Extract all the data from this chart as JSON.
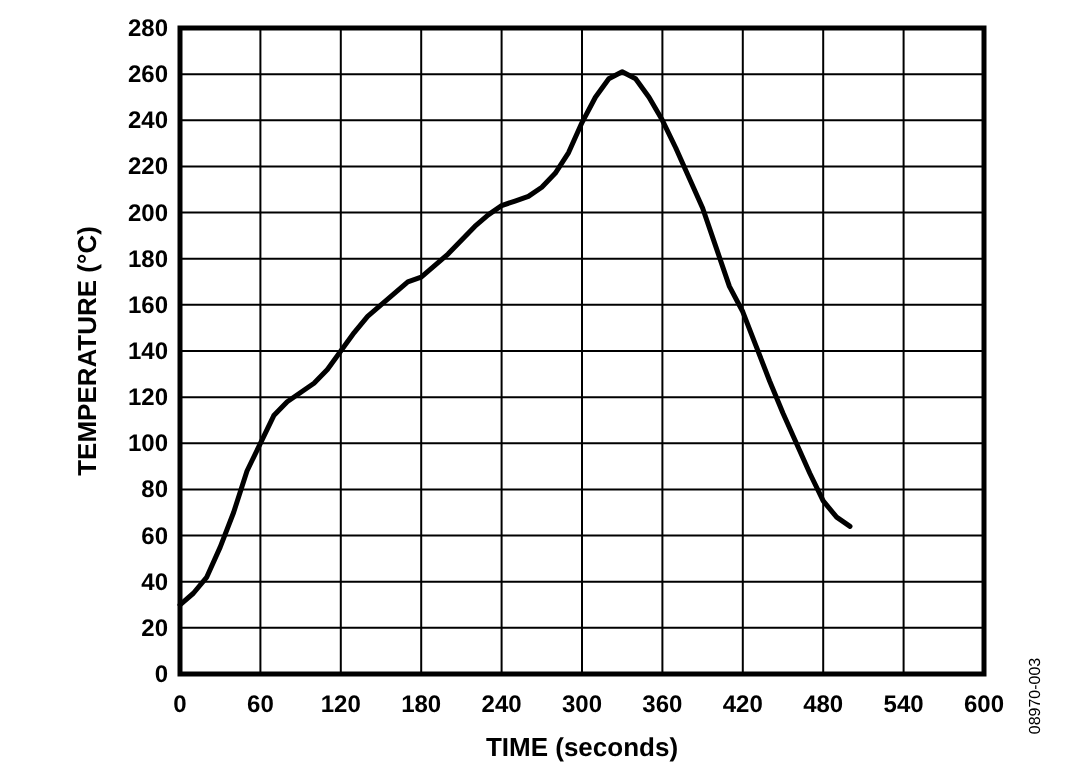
{
  "chart_data": {
    "type": "line",
    "xlabel": "TIME (seconds)",
    "ylabel": "TEMPERATURE (°C)",
    "xlim": [
      0,
      600
    ],
    "ylim": [
      0,
      280
    ],
    "xticks": [
      0,
      60,
      120,
      180,
      240,
      300,
      360,
      420,
      480,
      540,
      600
    ],
    "yticks": [
      0,
      20,
      40,
      60,
      80,
      100,
      120,
      140,
      160,
      180,
      200,
      220,
      240,
      260,
      280
    ],
    "grid": true,
    "marker": "none",
    "line_style": "solid",
    "annotations": [
      "08970-003"
    ],
    "x": [
      0,
      10,
      20,
      30,
      40,
      50,
      60,
      70,
      80,
      90,
      100,
      110,
      120,
      130,
      140,
      150,
      160,
      170,
      180,
      190,
      200,
      210,
      220,
      230,
      240,
      250,
      260,
      270,
      280,
      290,
      300,
      310,
      320,
      330,
      340,
      350,
      360,
      370,
      380,
      390,
      400,
      410,
      420,
      430,
      440,
      450,
      460,
      470,
      480,
      490,
      500
    ],
    "series": [
      {
        "color": "#000000",
        "values": [
          30,
          35,
          42,
          55,
          70,
          88,
          100,
          112,
          118,
          122,
          126,
          132,
          140,
          148,
          155,
          160,
          165,
          170,
          172,
          177,
          182,
          188,
          194,
          199,
          203,
          205,
          207,
          211,
          217,
          226,
          239,
          250,
          258,
          261,
          258,
          250,
          240,
          228,
          215,
          202,
          185,
          168,
          157,
          142,
          127,
          113,
          100,
          87,
          75,
          68,
          64
        ]
      }
    ]
  }
}
